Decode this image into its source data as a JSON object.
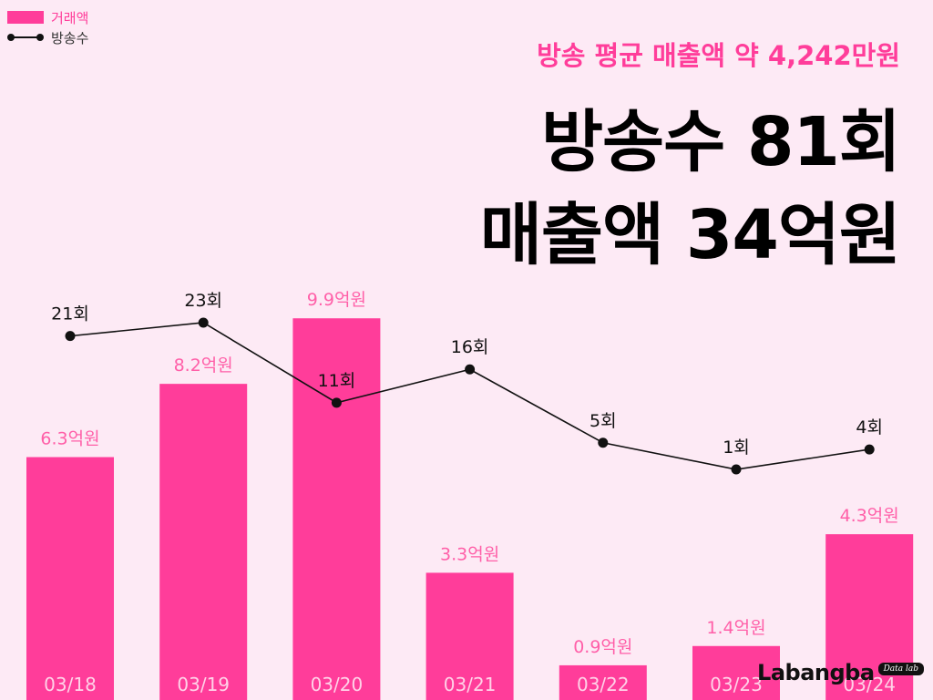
{
  "legend": {
    "bar_label": "거래액",
    "line_label": "방송수"
  },
  "header": {
    "subtitle": "방송 평균 매출액 약 4,242만원",
    "title_line1": "방송수 81회",
    "title_line2": "매출액 34억원"
  },
  "logo": {
    "text": "Labangba",
    "badge": "Data lab"
  },
  "colors": {
    "background": "#fdeaf5",
    "bar": "#ff3d9a",
    "bar_label": "#ff5fa8",
    "line": "#111111",
    "accent": "#ff3d9a"
  },
  "chart_data": {
    "type": "bar",
    "categories": [
      "03/18",
      "03/19",
      "03/20",
      "03/21",
      "03/22",
      "03/23",
      "03/24"
    ],
    "series": [
      {
        "name": "거래액",
        "type": "bar",
        "unit": "억원",
        "values": [
          6.3,
          8.2,
          9.9,
          3.3,
          0.9,
          1.4,
          4.3
        ],
        "labels": [
          "6.3억원",
          "8.2억원",
          "9.9억원",
          "3.3억원",
          "0.9억원",
          "1.4억원",
          "4.3억원"
        ]
      },
      {
        "name": "방송수",
        "type": "line",
        "unit": "회",
        "values": [
          21,
          23,
          11,
          16,
          5,
          1,
          4
        ],
        "labels": [
          "21회",
          "23회",
          "11회",
          "16회",
          "5회",
          "1회",
          "4회"
        ]
      }
    ],
    "ylim_bar": [
      0,
      11.4
    ],
    "ylim_line": [
      -24,
      40
    ],
    "grid": false,
    "legend_position": "top-left"
  }
}
